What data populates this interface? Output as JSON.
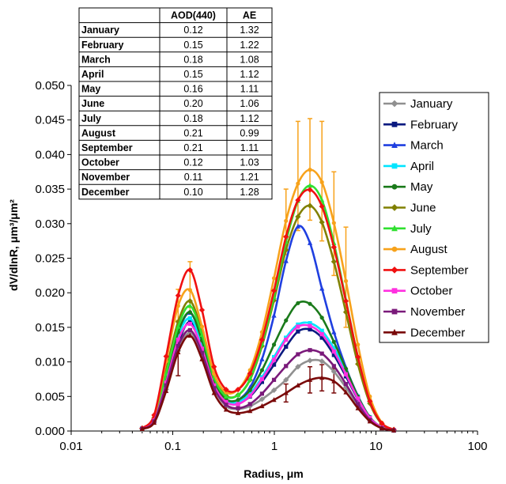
{
  "chart_data": {
    "type": "line",
    "xlabel": "Radius, μm",
    "ylabel": "dV/dlnR, μm³/μm²",
    "xscale": "log",
    "xlim": [
      0.01,
      100
    ],
    "ylim": [
      0,
      0.05
    ],
    "x_ticks": [
      "0.01",
      "0.1",
      "1",
      "10",
      "100"
    ],
    "y_ticks": [
      "0.000",
      "0.005",
      "0.010",
      "0.015",
      "0.020",
      "0.025",
      "0.030",
      "0.035",
      "0.040",
      "0.045",
      "0.050"
    ],
    "grid": false,
    "legend_position": "right",
    "x": [
      0.05,
      0.0656,
      0.0861,
      0.113,
      0.148,
      0.194,
      0.255,
      0.335,
      0.439,
      0.576,
      0.756,
      0.992,
      1.302,
      1.708,
      2.241,
      2.94,
      3.857,
      5.06,
      6.641,
      8.713,
      11.432,
      15.0
    ],
    "series": [
      {
        "name": "January",
        "color": "#909090",
        "marker": "diamond",
        "values": [
          0.0003,
          0.0013,
          0.006,
          0.0116,
          0.0142,
          0.0112,
          0.0062,
          0.0036,
          0.0032,
          0.0036,
          0.0046,
          0.0059,
          0.0074,
          0.0093,
          0.0102,
          0.0101,
          0.0086,
          0.0063,
          0.0037,
          0.0015,
          0.0004,
          0.0001
        ]
      },
      {
        "name": "February",
        "color": "#0a1a80",
        "marker": "square",
        "values": [
          0.0003,
          0.0014,
          0.0067,
          0.0127,
          0.0158,
          0.0123,
          0.0068,
          0.0042,
          0.004,
          0.005,
          0.0071,
          0.0096,
          0.0122,
          0.0144,
          0.0147,
          0.0135,
          0.011,
          0.0079,
          0.0046,
          0.0019,
          0.0005,
          0.0001
        ]
      },
      {
        "name": "March",
        "color": "#1f3fe0",
        "marker": "triangle",
        "values": [
          0.0004,
          0.0017,
          0.0078,
          0.0142,
          0.0171,
          0.0131,
          0.0071,
          0.0045,
          0.0045,
          0.0063,
          0.0104,
          0.0167,
          0.0246,
          0.0296,
          0.0272,
          0.0206,
          0.0143,
          0.0092,
          0.0051,
          0.002,
          0.0005,
          0.0001
        ]
      },
      {
        "name": "April",
        "color": "#00e5ff",
        "marker": "square",
        "values": [
          0.0004,
          0.0016,
          0.0075,
          0.0138,
          0.0163,
          0.0125,
          0.0069,
          0.0044,
          0.0042,
          0.0054,
          0.0078,
          0.0107,
          0.0135,
          0.0154,
          0.0156,
          0.0145,
          0.012,
          0.0087,
          0.005,
          0.002,
          0.0005,
          0.0001
        ]
      },
      {
        "name": "May",
        "color": "#1a7a1a",
        "marker": "circle",
        "values": [
          0.0004,
          0.0017,
          0.0078,
          0.0143,
          0.0172,
          0.0131,
          0.0072,
          0.0046,
          0.0045,
          0.0059,
          0.0088,
          0.0125,
          0.016,
          0.0185,
          0.0184,
          0.0164,
          0.0129,
          0.009,
          0.005,
          0.002,
          0.0005,
          0.0001
        ]
      },
      {
        "name": "June",
        "color": "#808000",
        "marker": "diamond",
        "values": [
          0.0004,
          0.0019,
          0.0088,
          0.0158,
          0.0188,
          0.0143,
          0.0079,
          0.0051,
          0.0052,
          0.0074,
          0.0123,
          0.0189,
          0.0262,
          0.031,
          0.0326,
          0.0302,
          0.0245,
          0.0172,
          0.0097,
          0.004,
          0.001,
          0.0002
        ]
      },
      {
        "name": "July",
        "color": "#30e030",
        "marker": "triangle",
        "values": [
          0.0004,
          0.0018,
          0.0083,
          0.0151,
          0.0181,
          0.0139,
          0.0077,
          0.005,
          0.0052,
          0.0075,
          0.0126,
          0.0194,
          0.0274,
          0.0333,
          0.0355,
          0.0334,
          0.0272,
          0.019,
          0.0107,
          0.0043,
          0.0011,
          0.0002
        ]
      },
      {
        "name": "August",
        "color": "#f7a21b",
        "marker": "circle",
        "values": [
          0.0004,
          0.0022,
          0.0101,
          0.0181,
          0.0204,
          0.0151,
          0.0083,
          0.0056,
          0.006,
          0.0088,
          0.0143,
          0.0221,
          0.0304,
          0.0358,
          0.0378,
          0.036,
          0.0301,
          0.0217,
          0.0125,
          0.005,
          0.0012,
          0.0002
        ]
      },
      {
        "name": "September",
        "color": "#f01010",
        "marker": "diamond",
        "values": [
          0.0004,
          0.0023,
          0.0108,
          0.0196,
          0.0233,
          0.0175,
          0.0093,
          0.006,
          0.006,
          0.0083,
          0.0132,
          0.0203,
          0.0281,
          0.0334,
          0.0349,
          0.0325,
          0.0266,
          0.0188,
          0.0107,
          0.0043,
          0.0011,
          0.0002
        ]
      },
      {
        "name": "October",
        "color": "#ff30e0",
        "marker": "square",
        "values": [
          0.0003,
          0.0015,
          0.007,
          0.0132,
          0.0155,
          0.0119,
          0.0066,
          0.0042,
          0.0039,
          0.0051,
          0.0075,
          0.0103,
          0.0132,
          0.0151,
          0.0152,
          0.014,
          0.0115,
          0.0082,
          0.0047,
          0.0019,
          0.0005,
          0.0001
        ]
      },
      {
        "name": "November",
        "color": "#7a1a7a",
        "marker": "square",
        "values": [
          0.0003,
          0.0014,
          0.0066,
          0.0123,
          0.0146,
          0.0113,
          0.0062,
          0.0038,
          0.0033,
          0.0039,
          0.0054,
          0.0074,
          0.0094,
          0.0111,
          0.0117,
          0.0112,
          0.0094,
          0.0068,
          0.0039,
          0.0016,
          0.0004,
          0.0001
        ]
      },
      {
        "name": "December",
        "color": "#7a0a0a",
        "marker": "triangle",
        "values": [
          0.0003,
          0.0012,
          0.0058,
          0.0114,
          0.0138,
          0.0104,
          0.0055,
          0.0031,
          0.0026,
          0.0029,
          0.0036,
          0.0045,
          0.0055,
          0.0066,
          0.0074,
          0.0077,
          0.0072,
          0.0056,
          0.0033,
          0.0014,
          0.0004,
          0.0001
        ]
      }
    ],
    "error_bars": {
      "series": "August",
      "points": [
        {
          "x": 0.113,
          "low": 0.016,
          "high": 0.0205
        },
        {
          "x": 0.148,
          "low": 0.017,
          "high": 0.0245
        },
        {
          "x": 1.302,
          "low": 0.0255,
          "high": 0.035
        },
        {
          "x": 1.708,
          "low": 0.029,
          "high": 0.0448
        },
        {
          "x": 2.241,
          "low": 0.0305,
          "high": 0.0452
        },
        {
          "x": 2.94,
          "low": 0.0275,
          "high": 0.0448
        },
        {
          "x": 3.857,
          "low": 0.0225,
          "high": 0.0375
        },
        {
          "x": 5.06,
          "low": 0.015,
          "high": 0.0295
        }
      ],
      "december_points": [
        {
          "x": 0.113,
          "low": 0.008,
          "high": 0.0125
        },
        {
          "x": 1.302,
          "low": 0.0042,
          "high": 0.0068
        },
        {
          "x": 2.241,
          "low": 0.0055,
          "high": 0.0093
        },
        {
          "x": 2.94,
          "low": 0.0058,
          "high": 0.0096
        },
        {
          "x": 3.857,
          "low": 0.0055,
          "high": 0.009
        }
      ]
    }
  },
  "table": {
    "headers": [
      "",
      "AOD(440)",
      "AE"
    ],
    "rows": [
      [
        "January",
        "0.12",
        "1.32"
      ],
      [
        "February",
        "0.15",
        "1.22"
      ],
      [
        "March",
        "0.18",
        "1.08"
      ],
      [
        "April",
        "0.15",
        "1.12"
      ],
      [
        "May",
        "0.16",
        "1.11"
      ],
      [
        "June",
        "0.20",
        "1.06"
      ],
      [
        "July",
        "0.18",
        "1.12"
      ],
      [
        "August",
        "0.21",
        "0.99"
      ],
      [
        "September",
        "0.21",
        "1.11"
      ],
      [
        "October",
        "0.12",
        "1.03"
      ],
      [
        "November",
        "0.11",
        "1.21"
      ],
      [
        "December",
        "0.10",
        "1.28"
      ]
    ]
  }
}
